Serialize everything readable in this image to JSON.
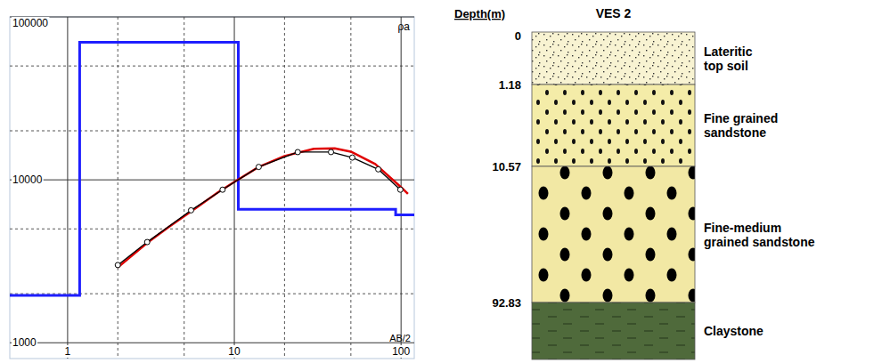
{
  "chart_data": {
    "type": "line",
    "log": true,
    "grid": true,
    "xlim": [
      0.45,
      120
    ],
    "ylim": [
      800,
      100000
    ],
    "xticks": [
      1,
      10,
      100
    ],
    "yticks": [
      1000,
      10000,
      100000
    ],
    "minor_xticks": [
      2,
      5,
      20,
      50
    ],
    "minor_yticks": [
      2000,
      5000,
      20000,
      50000
    ],
    "x_label": "AB/2",
    "y_label": "ρa",
    "series": [
      {
        "type": "line",
        "line_style": "step",
        "color": "#1f1fff",
        "x": [
          0.45,
          1.18,
          10.57,
          92.83
        ],
        "values": [
          1950,
          70000,
          6600,
          6100
        ]
      },
      {
        "type": "line",
        "line_style": "solid",
        "color": "#e00000",
        "x": [
          2,
          3,
          4,
          6,
          8,
          10,
          14,
          20,
          30,
          40,
          50,
          70,
          100,
          110
        ],
        "values": [
          2900,
          4100,
          5100,
          6800,
          8400,
          9700,
          12000,
          14000,
          15500,
          15600,
          14900,
          12500,
          9000,
          8200
        ]
      },
      {
        "type": "line",
        "line_style": "solid",
        "marker": "circle",
        "color": "#000000",
        "x": [
          2,
          3,
          5.5,
          8.5,
          14,
          24,
          38,
          51,
          73,
          99
        ],
        "values": [
          3000,
          4150,
          6500,
          8700,
          12000,
          14800,
          14800,
          13700,
          11600,
          8700
        ]
      }
    ]
  },
  "column": {
    "depth_label": "Depth(m)",
    "title": "VES 2",
    "depths": [
      0,
      1.18,
      10.57,
      92.83
    ],
    "layers": [
      {
        "lines": [
          "Lateritic",
          "top soil"
        ]
      },
      {
        "lines": [
          "Fine grained",
          "sandstone"
        ]
      },
      {
        "lines": [
          "Fine-medium",
          "grained sandstone"
        ]
      },
      {
        "lines": [
          "Claystone"
        ]
      }
    ]
  }
}
